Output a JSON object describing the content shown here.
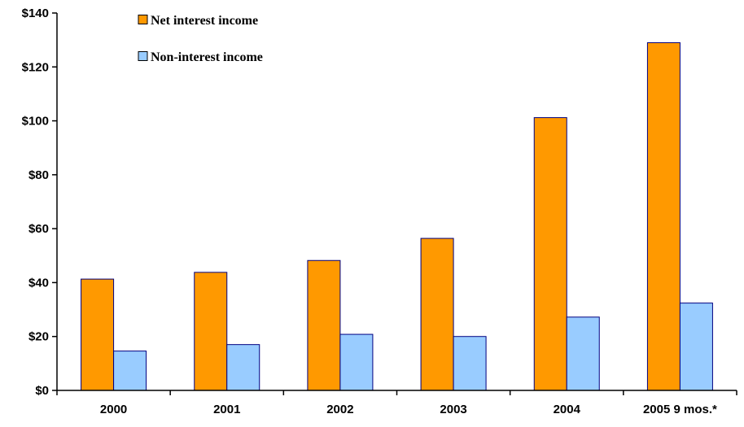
{
  "chart_data": {
    "type": "bar",
    "categories": [
      "2000",
      "2001",
      "2002",
      "2003",
      "2004",
      "2005 9 mos.*"
    ],
    "series": [
      {
        "name": "Net interest income",
        "values": [
          41.3,
          43.8,
          48.2,
          56.4,
          101.2,
          129.0
        ],
        "color": "#FF9900"
      },
      {
        "name": "Non-interest income",
        "values": [
          14.6,
          17.0,
          20.8,
          20.0,
          27.2,
          32.4
        ],
        "color": "#99CCFF"
      }
    ],
    "ylim": [
      0,
      140
    ],
    "yticks": [
      0,
      20,
      40,
      60,
      80,
      100,
      120,
      140
    ],
    "ytick_labels": [
      "$0",
      "$20",
      "$40",
      "$60",
      "$80",
      "$100",
      "$120",
      "$140"
    ],
    "bar_edge_color": "#000080",
    "legend": "top-left",
    "grid": false
  }
}
